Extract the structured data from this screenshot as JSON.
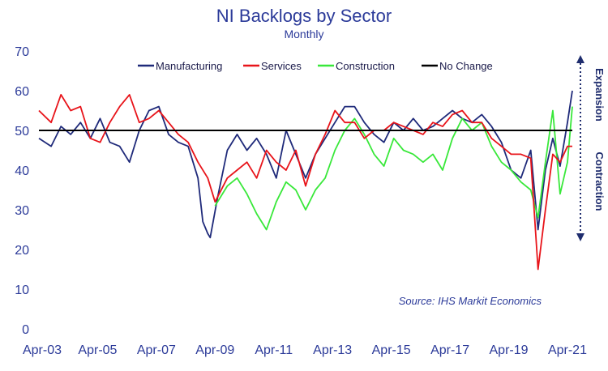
{
  "chart_data": {
    "type": "line",
    "title": "NI Backlogs by Sector",
    "subtitle": "Monthly",
    "source": "Source: IHS Markit Economics",
    "xlabel": "",
    "ylabel": "",
    "ylim": [
      0,
      70
    ],
    "y_ticks": [
      "0",
      "10",
      "20",
      "30",
      "40",
      "50",
      "60",
      "70"
    ],
    "x_range": [
      "2003-04",
      "2021-06"
    ],
    "x_tick_labels": [
      "Apr-03",
      "Apr-05",
      "Apr-07",
      "Apr-09",
      "Apr-11",
      "Apr-13",
      "Apr-15",
      "Apr-17",
      "Apr-19",
      "Apr-21"
    ],
    "x_tick_dates": [
      "2003-04",
      "2005-04",
      "2007-04",
      "2009-04",
      "2011-04",
      "2013-04",
      "2015-04",
      "2017-04",
      "2019-04",
      "2021-04"
    ],
    "legend_position": "top",
    "annotations": {
      "expansion": "Expansion",
      "contraction": "Contraction"
    },
    "series": [
      {
        "name": "Manufacturing",
        "color": "#1f2a7a",
        "points": [
          [
            "2003-04",
            48
          ],
          [
            "2003-09",
            46
          ],
          [
            "2004-01",
            51
          ],
          [
            "2004-05",
            49
          ],
          [
            "2004-09",
            52
          ],
          [
            "2005-01",
            48
          ],
          [
            "2005-05",
            53
          ],
          [
            "2005-09",
            47
          ],
          [
            "2006-01",
            46
          ],
          [
            "2006-05",
            42
          ],
          [
            "2006-09",
            50
          ],
          [
            "2007-01",
            55
          ],
          [
            "2007-05",
            56
          ],
          [
            "2007-09",
            49
          ],
          [
            "2008-01",
            47
          ],
          [
            "2008-05",
            46
          ],
          [
            "2008-09",
            38
          ],
          [
            "2008-11",
            27
          ],
          [
            "2009-01",
            24
          ],
          [
            "2009-02",
            23
          ],
          [
            "2009-05",
            33
          ],
          [
            "2009-09",
            45
          ],
          [
            "2010-01",
            49
          ],
          [
            "2010-05",
            45
          ],
          [
            "2010-09",
            48
          ],
          [
            "2011-01",
            44
          ],
          [
            "2011-05",
            38
          ],
          [
            "2011-09",
            50
          ],
          [
            "2012-01",
            44
          ],
          [
            "2012-05",
            38
          ],
          [
            "2012-09",
            44
          ],
          [
            "2013-01",
            48
          ],
          [
            "2013-05",
            52
          ],
          [
            "2013-09",
            56
          ],
          [
            "2014-01",
            56
          ],
          [
            "2014-05",
            52
          ],
          [
            "2014-09",
            49
          ],
          [
            "2015-01",
            47
          ],
          [
            "2015-05",
            52
          ],
          [
            "2015-09",
            50
          ],
          [
            "2016-01",
            53
          ],
          [
            "2016-05",
            50
          ],
          [
            "2016-09",
            51
          ],
          [
            "2017-01",
            53
          ],
          [
            "2017-05",
            55
          ],
          [
            "2017-09",
            53
          ],
          [
            "2018-01",
            52
          ],
          [
            "2018-05",
            54
          ],
          [
            "2018-09",
            51
          ],
          [
            "2019-01",
            47
          ],
          [
            "2019-05",
            40
          ],
          [
            "2019-09",
            38
          ],
          [
            "2020-01",
            45
          ],
          [
            "2020-04",
            25
          ],
          [
            "2020-07",
            40
          ],
          [
            "2020-10",
            48
          ],
          [
            "2021-01",
            41
          ],
          [
            "2021-04",
            52
          ],
          [
            "2021-06",
            60
          ]
        ]
      },
      {
        "name": "Services",
        "color": "#e8141a",
        "points": [
          [
            "2003-04",
            55
          ],
          [
            "2003-09",
            52
          ],
          [
            "2004-01",
            59
          ],
          [
            "2004-05",
            55
          ],
          [
            "2004-09",
            56
          ],
          [
            "2005-01",
            48
          ],
          [
            "2005-05",
            47
          ],
          [
            "2005-09",
            52
          ],
          [
            "2006-01",
            56
          ],
          [
            "2006-05",
            59
          ],
          [
            "2006-09",
            52
          ],
          [
            "2007-01",
            53
          ],
          [
            "2007-05",
            55
          ],
          [
            "2007-09",
            52
          ],
          [
            "2008-01",
            49
          ],
          [
            "2008-05",
            47
          ],
          [
            "2008-09",
            42
          ],
          [
            "2009-01",
            38
          ],
          [
            "2009-04",
            32
          ],
          [
            "2009-09",
            38
          ],
          [
            "2010-01",
            40
          ],
          [
            "2010-05",
            42
          ],
          [
            "2010-09",
            38
          ],
          [
            "2011-01",
            45
          ],
          [
            "2011-05",
            42
          ],
          [
            "2011-09",
            40
          ],
          [
            "2012-01",
            45
          ],
          [
            "2012-05",
            36
          ],
          [
            "2012-09",
            44
          ],
          [
            "2013-01",
            49
          ],
          [
            "2013-05",
            55
          ],
          [
            "2013-09",
            52
          ],
          [
            "2014-01",
            52
          ],
          [
            "2014-05",
            48
          ],
          [
            "2014-09",
            50
          ],
          [
            "2015-01",
            50
          ],
          [
            "2015-05",
            52
          ],
          [
            "2015-09",
            51
          ],
          [
            "2016-01",
            50
          ],
          [
            "2016-05",
            49
          ],
          [
            "2016-09",
            52
          ],
          [
            "2017-01",
            51
          ],
          [
            "2017-05",
            54
          ],
          [
            "2017-09",
            55
          ],
          [
            "2018-01",
            52
          ],
          [
            "2018-05",
            52
          ],
          [
            "2018-09",
            48
          ],
          [
            "2019-01",
            46
          ],
          [
            "2019-05",
            44
          ],
          [
            "2019-09",
            44
          ],
          [
            "2020-01",
            43
          ],
          [
            "2020-04",
            15
          ],
          [
            "2020-07",
            30
          ],
          [
            "2020-10",
            44
          ],
          [
            "2021-01",
            42
          ],
          [
            "2021-04",
            46
          ],
          [
            "2021-06",
            46
          ]
        ]
      },
      {
        "name": "Construction",
        "color": "#39e83a",
        "points": [
          [
            "2009-04",
            31
          ],
          [
            "2009-09",
            36
          ],
          [
            "2010-01",
            38
          ],
          [
            "2010-05",
            34
          ],
          [
            "2010-09",
            29
          ],
          [
            "2011-01",
            25
          ],
          [
            "2011-05",
            32
          ],
          [
            "2011-09",
            37
          ],
          [
            "2012-01",
            35
          ],
          [
            "2012-05",
            30
          ],
          [
            "2012-09",
            35
          ],
          [
            "2013-01",
            38
          ],
          [
            "2013-05",
            45
          ],
          [
            "2013-09",
            50
          ],
          [
            "2014-01",
            53
          ],
          [
            "2014-05",
            49
          ],
          [
            "2014-09",
            44
          ],
          [
            "2015-01",
            41
          ],
          [
            "2015-05",
            48
          ],
          [
            "2015-09",
            45
          ],
          [
            "2016-01",
            44
          ],
          [
            "2016-05",
            42
          ],
          [
            "2016-09",
            44
          ],
          [
            "2017-01",
            40
          ],
          [
            "2017-05",
            48
          ],
          [
            "2017-09",
            53
          ],
          [
            "2018-01",
            50
          ],
          [
            "2018-05",
            52
          ],
          [
            "2018-09",
            46
          ],
          [
            "2019-01",
            42
          ],
          [
            "2019-05",
            40
          ],
          [
            "2019-09",
            37
          ],
          [
            "2020-01",
            35
          ],
          [
            "2020-04",
            28
          ],
          [
            "2020-07",
            42
          ],
          [
            "2020-10",
            55
          ],
          [
            "2021-01",
            34
          ],
          [
            "2021-04",
            42
          ],
          [
            "2021-06",
            56
          ]
        ]
      },
      {
        "name": "No Change",
        "color": "#000000",
        "points": [
          [
            "2003-04",
            50
          ],
          [
            "2021-06",
            50
          ]
        ]
      }
    ]
  }
}
